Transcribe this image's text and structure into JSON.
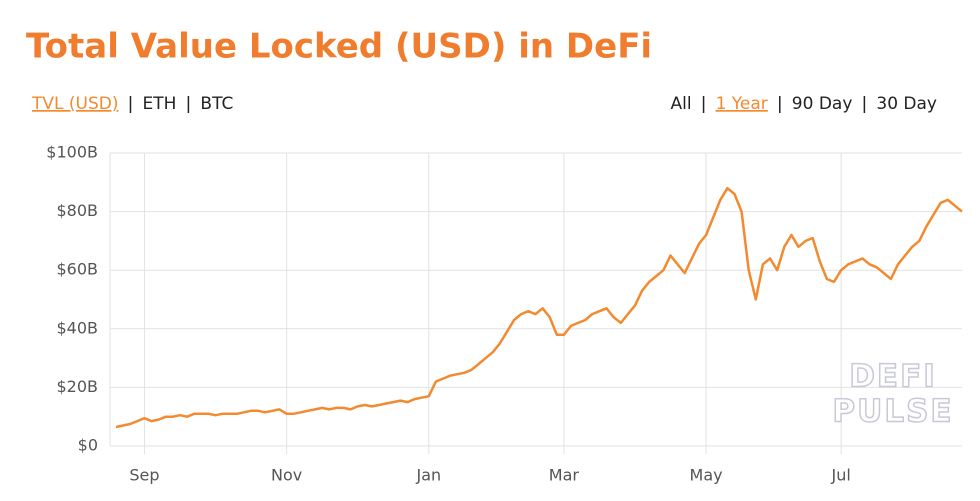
{
  "chart_data": {
    "type": "line",
    "title": "Total Value Locked (USD) in DeFi",
    "metric_tabs": [
      "TVL (USD)",
      "ETH",
      "BTC"
    ],
    "metric_active": 0,
    "range_tabs": [
      "All",
      "1 Year",
      "90 Day",
      "30 Day"
    ],
    "range_active": 1,
    "watermark": [
      "DEFI",
      "PULSE"
    ],
    "color": "#f28a30",
    "grid": true,
    "categories": [
      null,
      null,
      null,
      null,
      "Sep",
      null,
      null,
      null,
      null,
      null,
      null,
      null,
      null,
      null,
      null,
      null,
      null,
      null,
      null,
      null,
      null,
      null,
      null,
      null,
      "Nov",
      null,
      null,
      null,
      null,
      null,
      null,
      null,
      null,
      null,
      null,
      null,
      null,
      null,
      null,
      null,
      null,
      null,
      null,
      null,
      "Jan",
      null,
      null,
      null,
      null,
      null,
      null,
      null,
      null,
      null,
      null,
      null,
      null,
      null,
      null,
      null,
      null,
      null,
      null,
      "Mar",
      null,
      null,
      null,
      null,
      null,
      null,
      null,
      null,
      null,
      null,
      null,
      null,
      null,
      null,
      null,
      null,
      null,
      null,
      null,
      "May",
      null,
      null,
      null,
      null,
      null,
      null,
      null,
      null,
      null,
      null,
      null,
      null,
      null,
      null,
      null,
      null,
      null,
      null,
      "Jul",
      null,
      null,
      null,
      null,
      null,
      null,
      null,
      null,
      null,
      null,
      null,
      null,
      null,
      null,
      null,
      null,
      null
    ],
    "values": [
      6.5,
      7,
      7.5,
      8.5,
      9.5,
      8.5,
      9,
      10,
      10,
      10.5,
      10,
      11,
      11,
      11,
      10.5,
      11,
      11,
      11,
      11.5,
      12,
      12,
      11.5,
      12,
      12.5,
      11,
      11,
      11.5,
      12,
      12.5,
      13,
      12.5,
      13,
      13,
      12.5,
      13.5,
      14,
      13.5,
      14,
      14.5,
      15,
      15.5,
      15,
      16,
      16.5,
      17,
      22,
      23,
      24,
      24.5,
      25,
      26,
      28,
      30,
      32,
      35,
      39,
      43,
      45,
      46,
      45,
      47,
      44,
      38,
      38,
      41,
      42,
      43,
      45,
      46,
      47,
      44,
      42,
      45,
      48,
      53,
      56,
      58,
      60,
      65,
      62,
      59,
      64,
      69,
      72,
      78,
      84,
      88,
      86,
      80,
      60,
      50,
      62,
      64,
      60,
      68,
      72,
      68,
      70,
      71,
      63,
      57,
      56,
      60,
      62,
      63,
      64,
      62,
      61,
      59,
      57,
      62,
      65,
      68,
      70,
      75,
      79,
      83,
      84,
      82,
      80
    ],
    "ylim": [
      0,
      100
    ],
    "yticks": [
      {
        "value": 0,
        "label": "$0"
      },
      {
        "value": 20,
        "label": "$20B"
      },
      {
        "value": 40,
        "label": "$40B"
      },
      {
        "value": 60,
        "label": "$60B"
      },
      {
        "value": 80,
        "label": "$80B"
      },
      {
        "value": 100,
        "label": "$100B"
      }
    ]
  }
}
